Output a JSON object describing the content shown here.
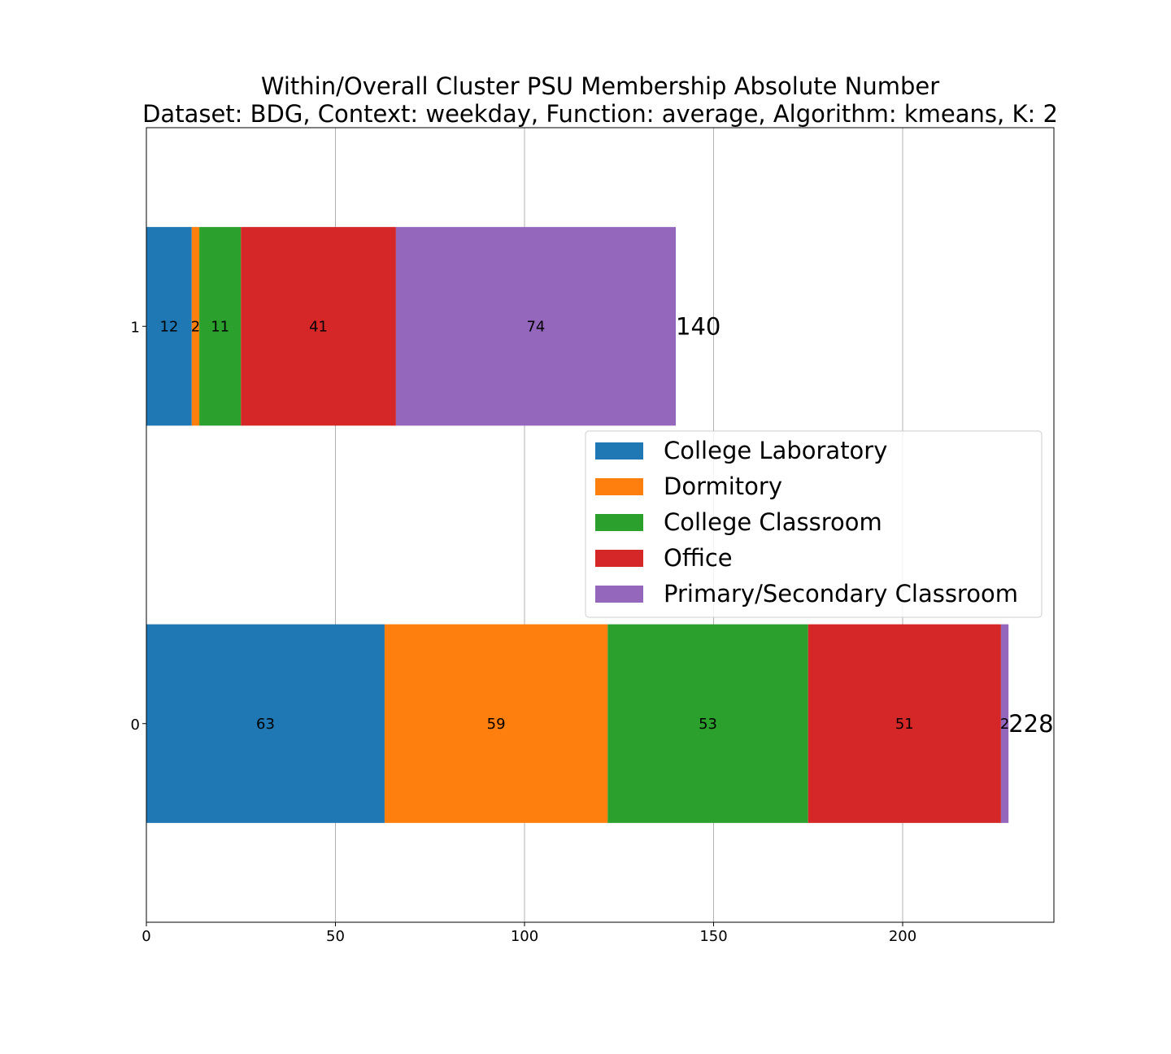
{
  "chart_data": {
    "type": "bar",
    "orientation": "horizontal",
    "stacked": true,
    "title": [
      "Within/Overall Cluster PSU Membership Absolute Number",
      "Dataset: BDG, Context: weekday, Function: average, Algorithm: kmeans, K: 2"
    ],
    "xlabel": "",
    "ylabel": "",
    "categories": [
      "0",
      "1"
    ],
    "xlim": [
      0,
      240
    ],
    "xticks": [
      0,
      50,
      100,
      150,
      200
    ],
    "grid": "x",
    "legend_position": "center-right",
    "series": [
      {
        "name": "College Laboratory",
        "color": "#1f77b4",
        "values": [
          63,
          12
        ]
      },
      {
        "name": "Dormitory",
        "color": "#ff7f0e",
        "values": [
          59,
          2
        ]
      },
      {
        "name": "College Classroom",
        "color": "#2ca02c",
        "values": [
          53,
          11
        ]
      },
      {
        "name": "Office",
        "color": "#d62728",
        "values": [
          51,
          41
        ]
      },
      {
        "name": "Primary/Secondary Classroom",
        "color": "#9467bd",
        "values": [
          2,
          74
        ]
      }
    ],
    "totals": [
      228,
      140
    ]
  }
}
